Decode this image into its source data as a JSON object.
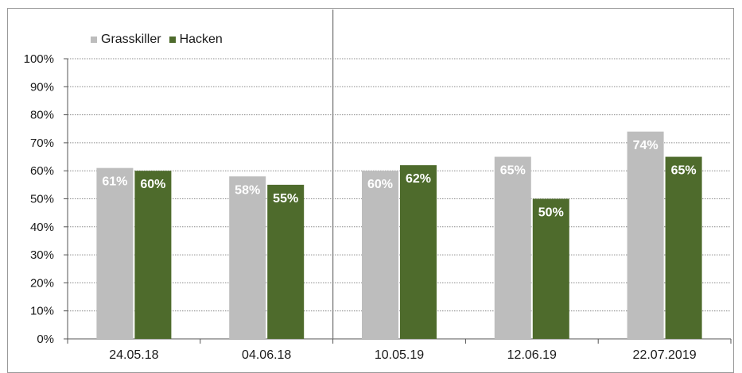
{
  "colors": {
    "grasskiller": "#bdbdbd",
    "hacken": "#4e6b2c",
    "grid": "#8c8c8c",
    "axis": "#555555",
    "text": "#1a1a1a",
    "label": "#ffffff"
  },
  "chart_data": {
    "type": "bar",
    "title": "",
    "xlabel": "",
    "ylabel": "",
    "ylim": [
      0,
      100
    ],
    "yticks": [
      "0%",
      "10%",
      "20%",
      "30%",
      "40%",
      "50%",
      "60%",
      "70%",
      "80%",
      "90%",
      "100%"
    ],
    "categories": [
      "24.05.18",
      "04.06.18",
      "10.05.19",
      "12.06.19",
      "22.07.2019"
    ],
    "series": [
      {
        "name": "Grasskiller",
        "values": [
          61,
          58,
          60,
          65,
          74
        ],
        "labels": [
          "61%",
          "58%",
          "60%",
          "65%",
          "74%"
        ]
      },
      {
        "name": "Hacken",
        "values": [
          60,
          55,
          62,
          50,
          65
        ],
        "labels": [
          "60%",
          "55%",
          "62%",
          "50%",
          "65%"
        ]
      }
    ],
    "grid": true,
    "legend_position": "top-left",
    "separator_after_category_index": 1
  }
}
